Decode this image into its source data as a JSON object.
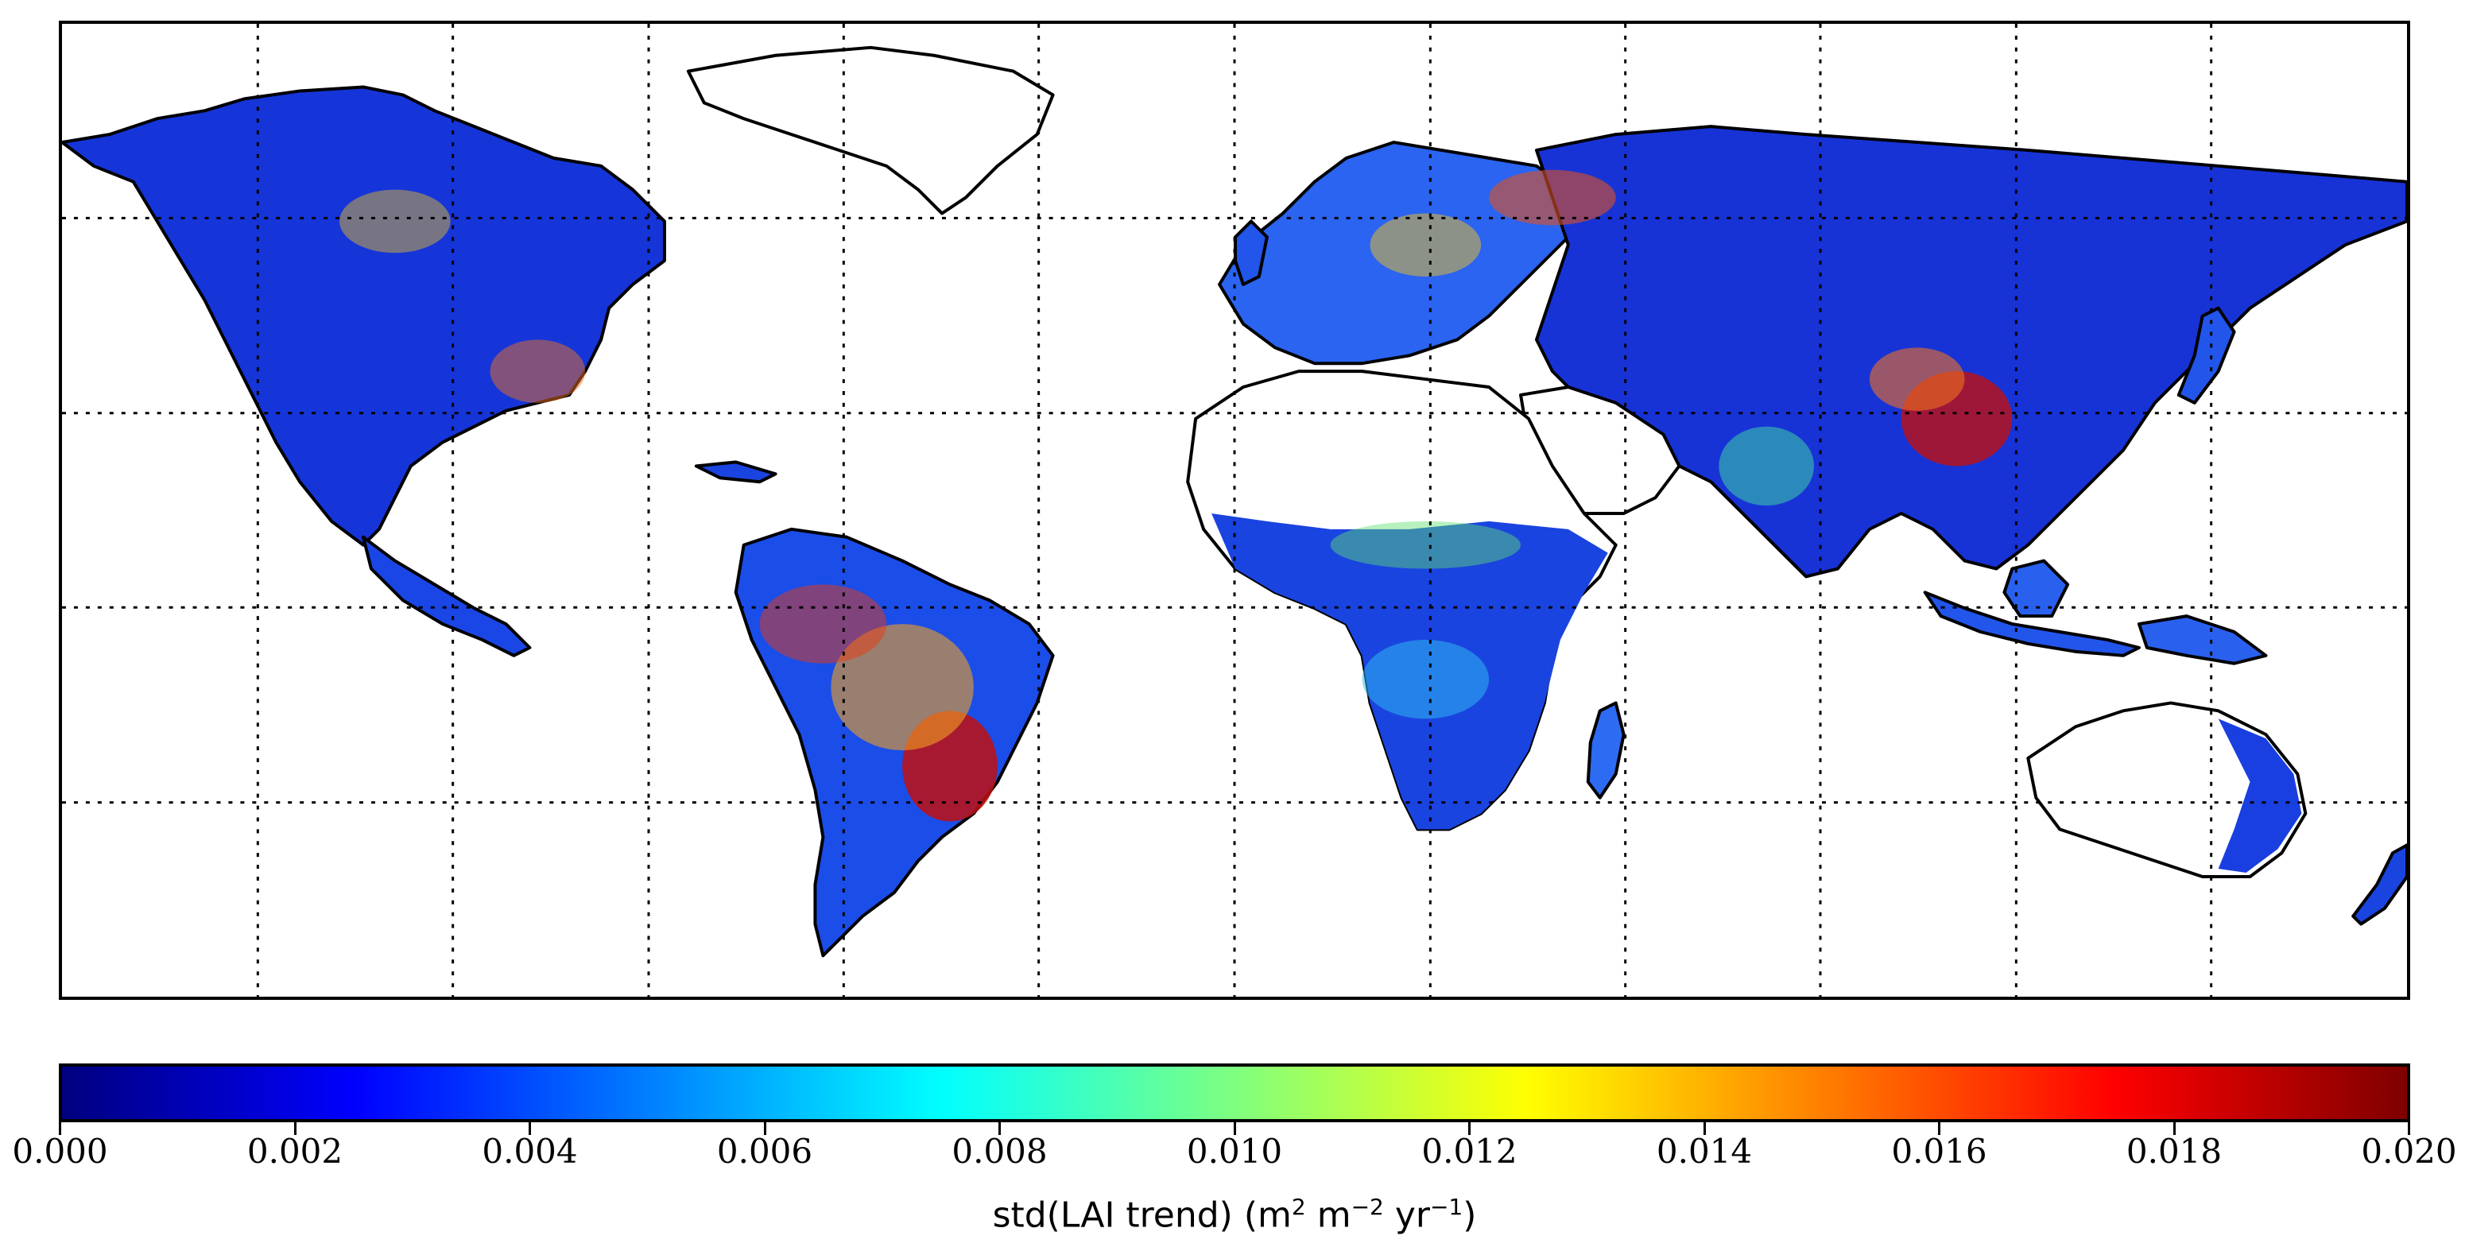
{
  "map": {
    "projection": "equirectangular",
    "grid": true,
    "land_color": "#ffffff",
    "coastline_color": "#000000"
  },
  "colorbar": {
    "colormap": "jet",
    "vmin": 0.0,
    "vmax": 0.02,
    "orientation": "horizontal",
    "ticks": [
      "0.000",
      "0.002",
      "0.004",
      "0.006",
      "0.008",
      "0.010",
      "0.012",
      "0.014",
      "0.016",
      "0.018",
      "0.020"
    ],
    "label_main": "std(LAI trend) (m",
    "label_sup1": "2",
    "label_mid": " m",
    "label_sup2": "−2",
    "label_mid2": " yr",
    "label_sup3": "−1",
    "label_end": ")"
  }
}
